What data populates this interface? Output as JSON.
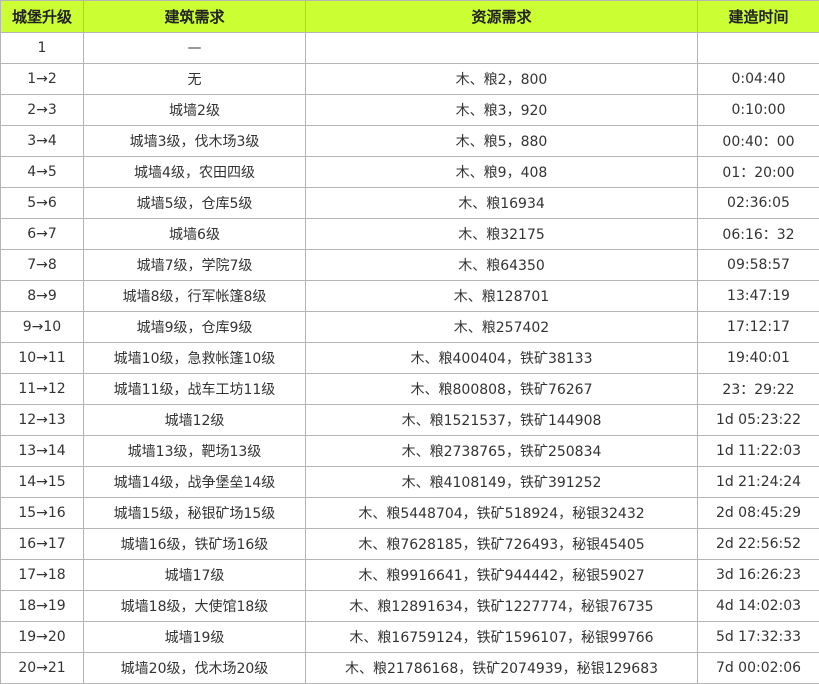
{
  "table": {
    "header": [
      "城堡升级",
      "建筑需求",
      "资源需求",
      "建造时间"
    ],
    "rows": [
      [
        "1",
        "—",
        null,
        null
      ],
      [
        "1→2",
        "无",
        "木、粮2，800",
        "0:04:40"
      ],
      [
        "2→3",
        "城墙2级",
        "木、粮3，920",
        "0:10:00"
      ],
      [
        "3→4",
        "城墙3级，伐木场3级",
        "木、粮5，880",
        "00:40：00"
      ],
      [
        "4→5",
        "城墙4级，农田四级",
        "木、粮9，408",
        "01：20:00"
      ],
      [
        "5→6",
        "城墙5级，仓库5级",
        "木、粮16934",
        "02:36:05"
      ],
      [
        "6→7",
        "城墙6级",
        "木、粮32175",
        "06:16：32"
      ],
      [
        "7→8",
        "城墙7级，学院7级",
        "木、粮64350",
        "09:58:57"
      ],
      [
        "8→9",
        "城墙8级，行军帐篷8级",
        "木、粮128701",
        "13:47:19"
      ],
      [
        "9→10",
        "城墙9级，仓库9级",
        "木、粮257402",
        "17:12:17"
      ],
      [
        "10→11",
        "城墙10级，急救帐篷10级",
        "木、粮400404，铁矿38133",
        "19:40:01"
      ],
      [
        "11→12",
        "城墙11级，战车工坊11级",
        "木、粮800808，铁矿76267",
        "23：29:22"
      ],
      [
        "12→13",
        "城墙12级",
        "木、粮1521537，铁矿144908",
        "1d 05:23:22"
      ],
      [
        "13→14",
        "城墙13级，靶场13级",
        "木、粮2738765，铁矿250834",
        "1d 11:22:03"
      ],
      [
        "14→15",
        "城墙14级，战争堡垒14级",
        "木、粮4108149，铁矿391252",
        "1d 21:24:24"
      ],
      [
        "15→16",
        "城墙15级，秘银矿场15级",
        "木、粮5448704，铁矿518924，秘银32432",
        "2d 08:45:29"
      ],
      [
        "16→17",
        "城墙16级，铁矿场16级",
        "木、粮7628185，铁矿726493，秘银45405",
        "2d 22:56:52"
      ],
      [
        "17→18",
        "城墙17级",
        "木、粮9916641，铁矿944442，秘银59027",
        "3d 16:26:23"
      ],
      [
        "18→19",
        "城墙18级，大使馆18级",
        "木、粮12891634，铁矿1227774，秘银76735",
        "4d 14:02:03"
      ],
      [
        "19→20",
        "城墙19级",
        "木、粮16759124，铁矿1596107，秘银99766",
        "5d 17:32:33"
      ],
      [
        "20→21",
        "城墙20级，伐木场20级",
        "木、粮21786168，铁矿2074939，秘银129683",
        "7d 00:02:06"
      ]
    ]
  }
}
